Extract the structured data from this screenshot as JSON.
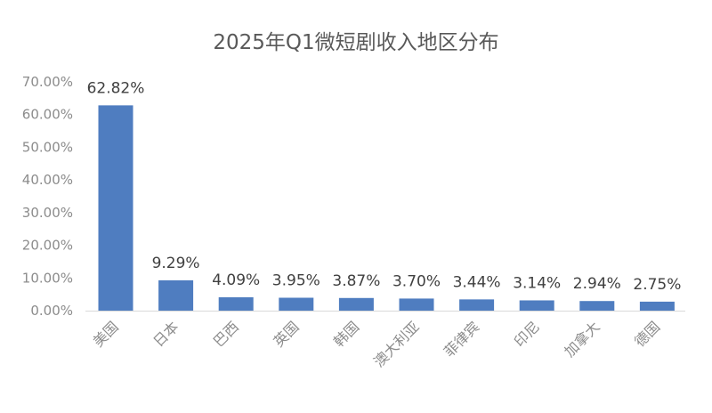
{
  "chart_data": {
    "type": "bar",
    "title": "2025年Q1微短剧收入地区分布",
    "xlabel": "",
    "ylabel": "",
    "categories": [
      "美国",
      "日本",
      "巴西",
      "英国",
      "韩国",
      "澳大利亚",
      "菲律宾",
      "印尼",
      "加拿大",
      "德国"
    ],
    "values": [
      62.82,
      9.29,
      4.09,
      3.95,
      3.87,
      3.7,
      3.44,
      3.14,
      2.94,
      2.75
    ],
    "data_labels": [
      "62.82%",
      "9.29%",
      "4.09%",
      "3.95%",
      "3.87%",
      "3.70%",
      "3.44%",
      "3.14%",
      "2.94%",
      "2.75%"
    ],
    "y_ticks": [
      "0.00%",
      "10.00%",
      "20.00%",
      "30.00%",
      "40.00%",
      "50.00%",
      "60.00%",
      "70.00%"
    ],
    "ylim": [
      0,
      70
    ],
    "grid": false,
    "legend": "none",
    "bar_color": "#4f7dc0"
  }
}
